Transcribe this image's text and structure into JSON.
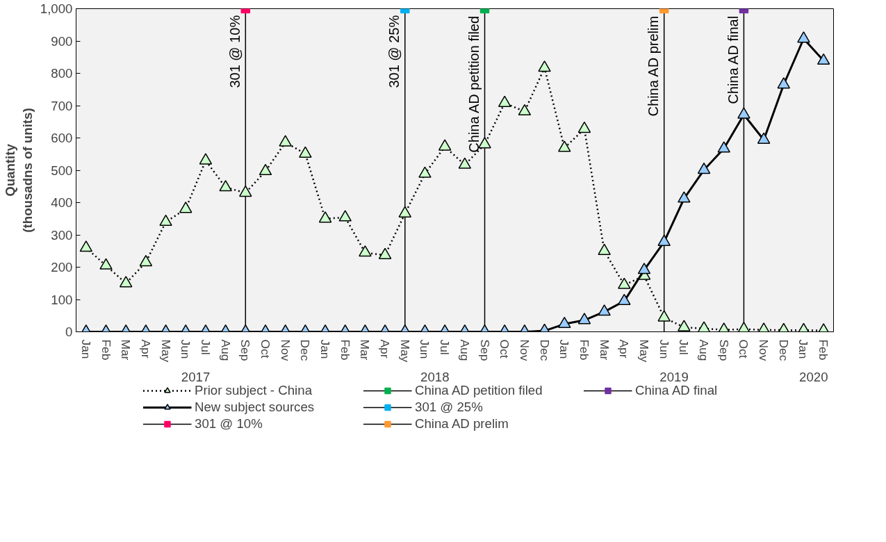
{
  "chart_data": {
    "type": "line",
    "ylabel": "Quantity\n(thousadns of units)",
    "x": [
      "2017-01",
      "2017-02",
      "2017-03",
      "2017-04",
      "2017-05",
      "2017-06",
      "2017-07",
      "2017-08",
      "2017-09",
      "2017-10",
      "2017-11",
      "2017-12",
      "2018-01",
      "2018-02",
      "2018-03",
      "2018-04",
      "2018-05",
      "2018-06",
      "2018-07",
      "2018-08",
      "2018-09",
      "2018-10",
      "2018-11",
      "2018-12",
      "2019-01",
      "2019-02",
      "2019-03",
      "2019-04",
      "2019-05",
      "2019-06",
      "2019-07",
      "2019-08",
      "2019-09",
      "2019-10",
      "2019-11",
      "2019-12",
      "2020-01",
      "2020-02"
    ],
    "xlim": [
      "2016-12-16",
      "2020-02-16"
    ],
    "xticks": [
      {
        "value": "2017-01",
        "label": "Jan"
      },
      {
        "value": "2017-02",
        "label": "Feb"
      },
      {
        "value": "2017-03",
        "label": "Mar"
      },
      {
        "value": "2017-04",
        "label": "Apr"
      },
      {
        "value": "2017-05",
        "label": "May"
      },
      {
        "value": "2017-06",
        "label": "Jun"
      },
      {
        "value": "2017-07",
        "label": "Jul"
      },
      {
        "value": "2017-08",
        "label": "Aug"
      },
      {
        "value": "2017-09",
        "label": "Sep"
      },
      {
        "value": "2017-10",
        "label": "Oct"
      },
      {
        "value": "2017-11",
        "label": "Nov"
      },
      {
        "value": "2017-12",
        "label": "Dec"
      },
      {
        "value": "2018-01",
        "label": "Jan"
      },
      {
        "value": "2018-02",
        "label": "Feb"
      },
      {
        "value": "2018-03",
        "label": "Mar"
      },
      {
        "value": "2018-04",
        "label": "Apr"
      },
      {
        "value": "2018-05",
        "label": "May"
      },
      {
        "value": "2018-06",
        "label": "Jun"
      },
      {
        "value": "2018-07",
        "label": "Jul"
      },
      {
        "value": "2018-08",
        "label": "Aug"
      },
      {
        "value": "2018-09",
        "label": "Sep"
      },
      {
        "value": "2018-10",
        "label": "Oct"
      },
      {
        "value": "2018-11",
        "label": "Nov"
      },
      {
        "value": "2018-12",
        "label": "Dec"
      },
      {
        "value": "2019-01",
        "label": "Jan"
      },
      {
        "value": "2019-02",
        "label": "Feb"
      },
      {
        "value": "2019-03",
        "label": "Mar"
      },
      {
        "value": "2019-04",
        "label": "Apr"
      },
      {
        "value": "2019-05",
        "label": "May"
      },
      {
        "value": "2019-06",
        "label": "Jun"
      },
      {
        "value": "2019-07",
        "label": "Jul"
      },
      {
        "value": "2019-08",
        "label": "Aug"
      },
      {
        "value": "2019-09",
        "label": "Sep"
      },
      {
        "value": "2019-10",
        "label": "Oct"
      },
      {
        "value": "2019-11",
        "label": "Nov"
      },
      {
        "value": "2019-12",
        "label": "Dec"
      },
      {
        "value": "2020-01",
        "label": "Jan"
      },
      {
        "value": "2020-02",
        "label": "Feb"
      }
    ],
    "annotations": [
      "2017",
      "2018",
      "2019",
      "2020"
    ],
    "series": [
      {
        "name": "Prior subject - China",
        "color": "#ccffcc",
        "line_style": "dotted",
        "values": [
          260,
          205,
          150,
          215,
          340,
          380,
          530,
          447,
          430,
          497,
          586,
          551,
          350,
          354,
          245,
          237,
          366,
          489,
          573,
          517,
          580,
          708,
          682,
          817,
          569,
          628,
          250,
          145,
          173,
          44,
          14,
          10,
          6,
          8,
          6,
          5,
          5,
          4
        ]
      },
      {
        "name": "New subject sources",
        "color": "#99ccff",
        "line_style": "solid",
        "values": [
          0,
          0,
          0,
          0,
          0,
          0,
          0,
          0,
          0,
          0,
          0,
          0,
          0,
          0,
          0,
          0,
          0,
          0,
          0,
          0,
          0,
          0,
          0,
          3,
          24,
          36,
          62,
          95,
          191,
          278,
          412,
          501,
          567,
          672,
          594,
          765,
          907,
          839
        ]
      },
      {
        "name": "301 @ 10%",
        "type": "scatter",
        "marker": "square",
        "color": "#ff0066",
        "x": [
          "2017-09"
        ],
        "values": [
          1000
        ]
      },
      {
        "name": "China AD petition filed",
        "type": "scatter",
        "marker": "square",
        "color": "#00b050",
        "x": [
          "2018-09"
        ],
        "values": [
          1000
        ]
      },
      {
        "name": "301 @ 25%",
        "type": "scatter",
        "marker": "square",
        "color": "#00b0f0",
        "x": [
          "2018-05"
        ],
        "values": [
          1000
        ]
      },
      {
        "name": "China AD prelim",
        "type": "scatter",
        "marker": "square",
        "color": "#ff9933",
        "x": [
          "2019-06"
        ],
        "values": [
          1000
        ]
      },
      {
        "name": "China AD final",
        "type": "scatter",
        "marker": "square",
        "color": "#7030a0",
        "x": [
          "2019-10"
        ],
        "values": [
          1000
        ]
      }
    ],
    "ref_lines": [
      {
        "axis": "x",
        "value": "2017-09",
        "label": "301 @ 10%"
      },
      {
        "axis": "x",
        "value": "2018-09",
        "label": "China AD petition filed"
      },
      {
        "axis": "x",
        "value": "2018-05",
        "label": "301 @ 25%"
      },
      {
        "axis": "x",
        "value": "2019-06",
        "label": "China AD prelim"
      },
      {
        "axis": "x",
        "value": "2019-10",
        "label": "China AD final"
      }
    ],
    "marker": "triangle",
    "ylim": [
      0,
      1000
    ],
    "yticks": [
      0,
      100,
      200,
      300,
      400,
      500,
      600,
      700,
      800,
      900,
      {
        "value": 1000,
        "label": "1,000"
      }
    ],
    "grid": false,
    "legend": "bottom"
  }
}
